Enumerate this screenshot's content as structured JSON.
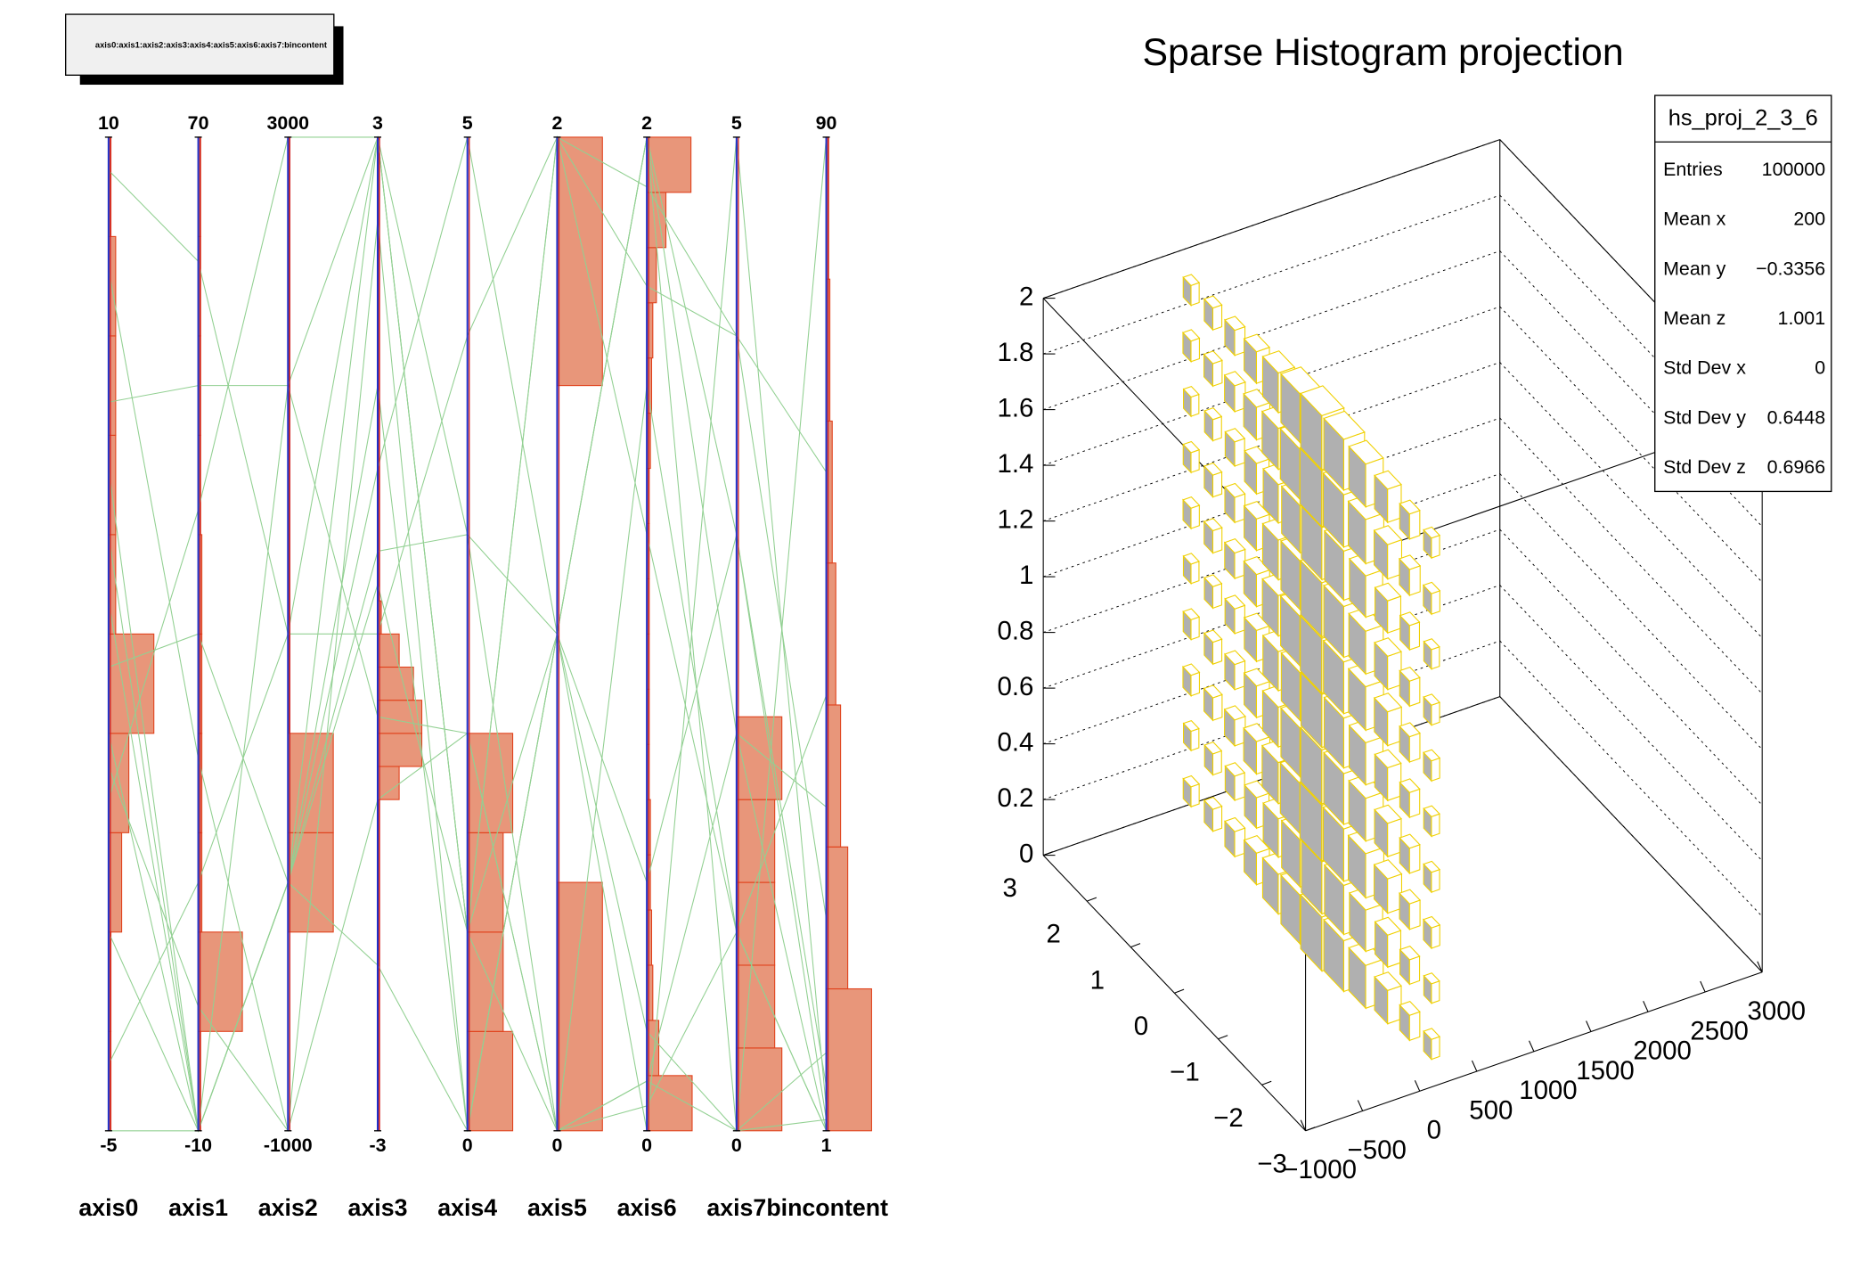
{
  "chart_data": [
    {
      "type": "parallel",
      "legend_text": "axis0:axis1:axis2:axis3:axis4:axis5:axis6:axis7:bincontent",
      "line_color": "#92d092",
      "hist_color": "#e8967a",
      "hist_edge": "#e0401a",
      "axis_color": "#2030c8",
      "axis_edge": "#d02020",
      "axes": [
        {
          "name": "axis0",
          "lim": [
            -5,
            10
          ],
          "hist": [
            2,
            2,
            11,
            17,
            38,
            6,
            6,
            6,
            6,
            2
          ]
        },
        {
          "name": "axis1",
          "lim": [
            -10,
            70
          ],
          "hist": [
            2,
            37,
            3,
            3,
            3,
            3,
            2,
            2,
            2,
            2
          ]
        },
        {
          "name": "axis2",
          "lim": [
            -1000,
            3000
          ],
          "hist": [
            0,
            0,
            38,
            38,
            1,
            1,
            1,
            1,
            1,
            1
          ]
        },
        {
          "name": "axis3",
          "lim": [
            -3,
            3
          ],
          "hist": [
            1,
            1,
            1,
            1,
            1,
            1,
            1,
            1,
            1,
            1,
            18,
            37,
            37,
            30,
            18,
            3,
            1,
            1,
            1,
            1,
            1,
            1,
            1,
            1,
            1,
            1,
            1,
            1,
            1,
            1
          ]
        },
        {
          "name": "axis4",
          "lim": [
            0,
            5
          ],
          "hist": [
            38,
            30,
            30,
            38,
            0,
            0,
            0,
            0,
            0,
            0
          ]
        },
        {
          "name": "axis5",
          "lim": [
            0,
            2
          ],
          "hist": [
            38,
            0,
            0,
            38
          ]
        },
        {
          "name": "axis6",
          "lim": [
            0,
            2
          ],
          "hist": [
            38,
            10,
            5,
            4,
            3,
            3,
            2,
            2,
            2,
            2,
            2,
            2,
            3,
            4,
            5,
            8,
            16,
            37
          ]
        },
        {
          "name": "axis7",
          "lim": [
            0,
            5
          ],
          "hist": [
            38,
            32,
            32,
            32,
            38,
            0,
            0,
            0,
            0,
            0,
            0,
            0
          ]
        },
        {
          "name": "bincontent",
          "lim": [
            1,
            90
          ],
          "hist": [
            38,
            18,
            12,
            8,
            5,
            3,
            2
          ]
        }
      ],
      "lines": [
        [
          9.5,
          60,
          1000,
          3,
          1,
          2,
          1.9,
          4,
          20
        ],
        [
          8,
          20,
          -1000,
          2.5,
          0,
          1,
          2,
          3,
          5
        ],
        [
          6,
          50,
          2000,
          3,
          3,
          0,
          1.5,
          1,
          40
        ],
        [
          3,
          -10,
          0,
          1,
          5,
          1,
          0.2,
          0,
          2
        ],
        [
          0.5,
          0,
          -1000,
          -1,
          2,
          0,
          0.1,
          2,
          1
        ],
        [
          -2,
          -10,
          0,
          -2,
          0,
          1,
          0,
          5,
          3
        ],
        [
          -4,
          10,
          1000,
          0,
          4,
          2,
          1.2,
          1,
          1
        ],
        [
          1,
          -10,
          0,
          3,
          1,
          1,
          2,
          0,
          8
        ],
        [
          2,
          30,
          0,
          0.3,
          1,
          2,
          1.7,
          4,
          60
        ],
        [
          5,
          -10,
          2000,
          -0.5,
          2,
          0,
          0.05,
          1,
          1
        ],
        [
          -5,
          -10,
          0,
          1.5,
          0,
          1,
          2,
          2,
          30
        ],
        [
          0,
          40,
          3000,
          3,
          1,
          0,
          0.1,
          0,
          90
        ],
        [
          4,
          -10,
          0,
          0.5,
          3,
          1,
          0.5,
          3,
          2
        ]
      ]
    },
    {
      "type": "lego",
      "title": "Sparse Histogram projection",
      "color": "#f0d000",
      "side_color": "#b0b0b0",
      "grid": true,
      "xlim": [
        -1000,
        3000
      ],
      "xticks": [
        {
          "value": -1000,
          "label": "−1000"
        },
        {
          "value": -500,
          "label": "−500"
        },
        0,
        500,
        1000,
        1500,
        2000,
        2500,
        3000
      ],
      "ylim": [
        -3,
        3
      ],
      "yticks": [
        {
          "value": -3,
          "label": "−3"
        },
        {
          "value": -2,
          "label": "−2"
        },
        {
          "value": -1,
          "label": "−1"
        },
        0,
        1,
        2,
        3
      ],
      "zlim": [
        0,
        2
      ],
      "zticks": [
        0,
        0.2,
        0.4,
        0.6,
        0.8,
        1,
        1.2,
        1.4,
        1.6,
        1.8,
        2
      ],
      "x": 200,
      "y_centers": [
        -2.75,
        -2.25,
        -1.75,
        -1.25,
        -0.75,
        -0.25,
        0.25,
        0.75,
        1.25,
        1.75,
        2.25,
        2.75
      ],
      "z_centers": [
        0.1,
        0.3,
        0.5,
        0.7,
        0.9,
        1.1,
        1.3,
        1.5,
        1.7,
        1.9
      ],
      "contents": [
        [
          150,
          140,
          160,
          150,
          145,
          155,
          150,
          140,
          165,
          150
        ],
        [
          300,
          280,
          320,
          300,
          290,
          310,
          300,
          270,
          330,
          300
        ],
        [
          700,
          630,
          770,
          700,
          665,
          735,
          700,
          630,
          770,
          700
        ],
        [
          1500,
          1350,
          1650,
          1500,
          1425,
          1575,
          1500,
          1350,
          1650,
          1500
        ],
        [
          2500,
          2250,
          2750,
          2500,
          2375,
          2625,
          2500,
          2250,
          2750,
          2500
        ],
        [
          3000,
          2700,
          3300,
          3000,
          2850,
          3150,
          3000,
          2700,
          3300,
          3000
        ],
        [
          2200,
          1980,
          2420,
          2200,
          2090,
          2310,
          2200,
          1980,
          2420,
          2200
        ],
        [
          1200,
          1080,
          1320,
          1200,
          1140,
          1260,
          1200,
          1080,
          1320,
          1200
        ],
        [
          600,
          540,
          660,
          600,
          570,
          630,
          600,
          540,
          660,
          600
        ],
        [
          300,
          270,
          330,
          300,
          285,
          315,
          300,
          270,
          330,
          300
        ],
        [
          200,
          180,
          220,
          200,
          190,
          210,
          200,
          180,
          220,
          200
        ],
        [
          150,
          135,
          165,
          150,
          140,
          160,
          150,
          135,
          165,
          150
        ]
      ],
      "stats": {
        "name": "hs_proj_2_3_6",
        "labels": [
          "Entries",
          "Mean x",
          "Mean y",
          "Mean z",
          "Std Dev x",
          "Std Dev y",
          "Std Dev z"
        ],
        "values": [
          100000,
          200,
          -0.3356,
          1.001,
          0,
          0.6448,
          0.6966
        ],
        "value_labels": [
          "100000",
          "200",
          "−0.3356",
          "1.001",
          "0",
          "0.6448",
          "0.6966"
        ]
      }
    }
  ]
}
